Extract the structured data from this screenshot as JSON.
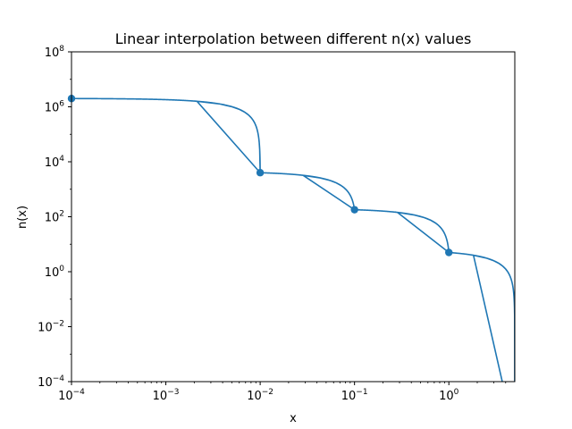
{
  "chart_data": {
    "type": "line",
    "title": "Linear interpolation between different n(x) values",
    "xlabel": "x",
    "ylabel": "n(x)",
    "xscale": "log",
    "yscale": "log",
    "xlim": [
      0.0001,
      5
    ],
    "ylim": [
      0.0001,
      100000000
    ],
    "grid": false,
    "legend": "none",
    "color": "#1f77b4",
    "x_ticks": [
      {
        "base": "10",
        "exp": "−4",
        "value": 0.0001
      },
      {
        "base": "10",
        "exp": "−3",
        "value": 0.001
      },
      {
        "base": "10",
        "exp": "−2",
        "value": 0.01
      },
      {
        "base": "10",
        "exp": "−1",
        "value": 0.1
      },
      {
        "base": "10",
        "exp": "0",
        "value": 1
      }
    ],
    "y_ticks": [
      {
        "base": "10",
        "exp": "−4",
        "value": 0.0001
      },
      {
        "base": "10",
        "exp": "−2",
        "value": 0.01
      },
      {
        "base": "10",
        "exp": "0",
        "value": 1
      },
      {
        "base": "10",
        "exp": "2",
        "value": 100
      },
      {
        "base": "10",
        "exp": "4",
        "value": 10000
      },
      {
        "base": "10",
        "exp": "6",
        "value": 1000000
      },
      {
        "base": "10",
        "exp": "8",
        "value": 100000000
      }
    ],
    "points": [
      {
        "x": 0.0001,
        "y": 2000000
      },
      {
        "x": 0.01,
        "y": 4000
      },
      {
        "x": 0.1,
        "y": 180
      },
      {
        "x": 1,
        "y": 5
      }
    ],
    "end_point": {
      "x": 5,
      "y": 0
    }
  }
}
